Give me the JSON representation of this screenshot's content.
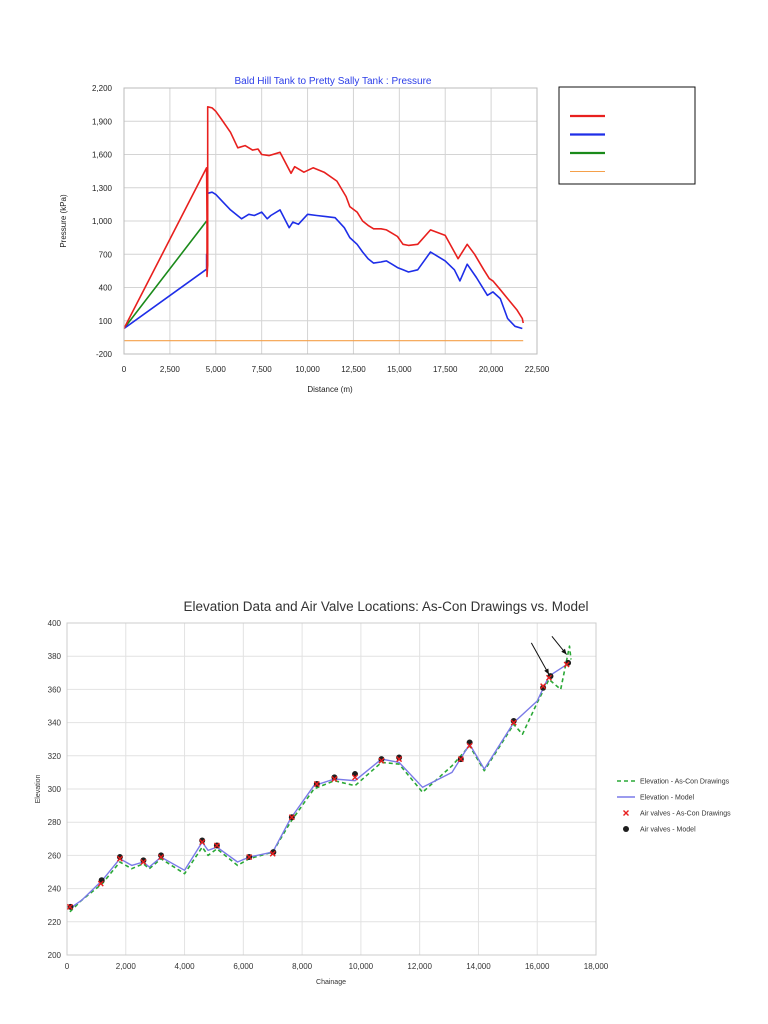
{
  "chart_data": [
    {
      "type": "line",
      "title": "Bald Hill Tank to Pretty Sally Tank : Pressure",
      "xlabel": "Distance (m)",
      "ylabel": "Pressure (kPa)",
      "xlim": [
        0,
        22500
      ],
      "ylim": [
        -200,
        2200
      ],
      "xticks": [
        0,
        2500,
        5000,
        7500,
        10000,
        12500,
        15000,
        17500,
        20000,
        22500
      ],
      "yticks": [
        -200,
        100,
        400,
        700,
        1000,
        1300,
        1600,
        1900,
        2200
      ],
      "xtick_labels": [
        "0",
        "2,500",
        "5,000",
        "7,500",
        "10,000",
        "12,500",
        "15,000",
        "17,500",
        "20,000",
        "22,500"
      ],
      "ytick_labels": [
        "-200",
        "100",
        "400",
        "700",
        "1,000",
        "1,300",
        "1,600",
        "1,900",
        "2,200"
      ],
      "grid": true,
      "legend_position": "right",
      "series": [
        {
          "name": "",
          "color": "#e8201e",
          "x": [
            0,
            4500,
            4520,
            4520,
            4560,
            4560,
            4800,
            5000,
            5300,
            5800,
            6200,
            6600,
            7000,
            7300,
            7500,
            7900,
            8500,
            9100,
            9300,
            9800,
            10300,
            10900,
            11600,
            12100,
            12300,
            12700,
            13000,
            13300,
            13600,
            14000,
            14300,
            14600,
            14900,
            15200,
            15500,
            16000,
            16700,
            17500,
            18200,
            18700,
            19100,
            19600,
            19900,
            20100,
            20500,
            20900,
            21400,
            21700,
            21750
          ],
          "y": [
            30,
            1480,
            1000,
            500,
            600,
            2030,
            2020,
            1990,
            1920,
            1800,
            1660,
            1680,
            1640,
            1650,
            1600,
            1590,
            1620,
            1430,
            1490,
            1440,
            1480,
            1440,
            1360,
            1220,
            1130,
            1080,
            1000,
            960,
            930,
            930,
            920,
            890,
            860,
            790,
            780,
            790,
            920,
            870,
            660,
            790,
            700,
            560,
            480,
            460,
            380,
            300,
            200,
            120,
            80
          ]
        },
        {
          "name": "",
          "color": "#1e2ee8",
          "x": [
            0,
            4450,
            4500,
            4500,
            4520,
            4560,
            4560,
            4800,
            5000,
            5400,
            5800,
            6400,
            6800,
            7100,
            7500,
            7800,
            8000,
            8500,
            9000,
            9200,
            9500,
            10000,
            10500,
            11000,
            11500,
            12000,
            12300,
            12700,
            13000,
            13300,
            13600,
            14000,
            14300,
            14600,
            14900,
            15200,
            15500,
            16000,
            16700,
            17500,
            18000,
            18300,
            18700,
            19200,
            19800,
            20100,
            20500,
            20900,
            21300,
            21700
          ],
          "y": [
            30,
            560,
            560,
            700,
            600,
            620,
            1250,
            1260,
            1240,
            1170,
            1100,
            1020,
            1060,
            1050,
            1080,
            1020,
            1050,
            1100,
            940,
            990,
            970,
            1060,
            1050,
            1040,
            1030,
            940,
            850,
            790,
            720,
            660,
            620,
            630,
            640,
            610,
            580,
            560,
            540,
            560,
            720,
            640,
            560,
            460,
            610,
            490,
            330,
            360,
            300,
            120,
            50,
            30
          ]
        },
        {
          "name": "",
          "color": "#1a8a1a",
          "x": [
            0,
            4500
          ],
          "y": [
            30,
            1000
          ]
        },
        {
          "name": "",
          "color": "#f5a04a",
          "x": [
            0,
            21750
          ],
          "y": [
            -80,
            -80
          ]
        }
      ]
    },
    {
      "type": "line",
      "title": "Elevation Data and Air Valve Locations: As-Con Drawings vs. Model",
      "xlabel": "Chainage",
      "ylabel": "Elevation",
      "xlim": [
        0,
        18000
      ],
      "ylim": [
        200,
        400
      ],
      "xticks": [
        0,
        2000,
        4000,
        6000,
        8000,
        10000,
        12000,
        14000,
        16000,
        18000
      ],
      "yticks": [
        200,
        220,
        240,
        260,
        280,
        300,
        320,
        340,
        360,
        380,
        400
      ],
      "xtick_labels": [
        "0",
        "2,000",
        "4,000",
        "6,000",
        "8,000",
        "10,000",
        "12,000",
        "14,000",
        "16,000",
        "18,000"
      ],
      "ytick_labels": [
        "200",
        "220",
        "240",
        "260",
        "280",
        "300",
        "320",
        "340",
        "360",
        "380",
        "400"
      ],
      "grid": true,
      "legend_position": "right",
      "series": [
        {
          "name": "Elevation - As-Con Drawings",
          "color": "#2aa836",
          "style": "dashed",
          "x": [
            100,
            500,
            1200,
            1800,
            2200,
            2600,
            2800,
            3200,
            4000,
            4600,
            4800,
            5100,
            5800,
            6200,
            7000,
            7600,
            8400,
            9100,
            9800,
            10700,
            11300,
            12100,
            13100,
            13700,
            14200,
            15200,
            15500,
            16000,
            16400,
            16800,
            17100,
            17150
          ],
          "y": [
            226,
            233,
            243,
            256,
            252,
            255,
            252,
            258,
            249,
            265,
            260,
            264,
            254,
            258,
            262,
            280,
            300,
            305,
            302,
            316,
            315,
            298,
            314,
            326,
            311,
            339,
            333,
            352,
            366,
            360,
            386,
            378
          ]
        },
        {
          "name": "Elevation - Model",
          "color": "#7a7ae8",
          "style": "solid",
          "x": [
            100,
            500,
            1200,
            1800,
            2200,
            2600,
            2800,
            3200,
            4000,
            4600,
            4800,
            5100,
            5800,
            6200,
            7000,
            7600,
            8400,
            9100,
            9800,
            10700,
            11300,
            12100,
            13100,
            13700,
            14200,
            15200,
            16000,
            16400,
            17100
          ],
          "y": [
            228,
            233,
            245,
            258,
            254,
            256,
            253,
            259,
            251,
            268,
            263,
            265,
            256,
            259,
            262,
            282,
            302,
            306,
            305,
            318,
            316,
            301,
            310,
            327,
            312,
            340,
            353,
            368,
            376
          ]
        },
        {
          "name": "Air valves - As-Con Drawings",
          "color": "#e81e1e",
          "marker": "x",
          "x": [
            100,
            1150,
            1800,
            2600,
            3200,
            4600,
            5100,
            6200,
            7000,
            7650,
            8500,
            9100,
            9800,
            10700,
            11300,
            13400,
            13700,
            15200,
            16200,
            16400,
            17000
          ],
          "y": [
            229,
            243,
            258,
            256,
            259,
            268,
            266,
            259,
            261,
            283,
            303,
            306,
            307,
            317,
            318,
            318,
            326,
            340,
            362,
            367,
            375
          ]
        },
        {
          "name": "Air valves - Model",
          "color": "#1e1e1e",
          "marker": "circle",
          "x": [
            120,
            1180,
            1800,
            2600,
            3200,
            4600,
            5100,
            6200,
            7020,
            7650,
            8500,
            9100,
            9800,
            10700,
            11300,
            13400,
            13700,
            15200,
            16200,
            16450,
            17050
          ],
          "y": [
            229,
            245,
            259,
            257,
            260,
            269,
            266,
            259,
            262,
            283,
            303,
            307,
            309,
            318,
            319,
            318,
            328,
            341,
            361,
            368,
            376
          ]
        }
      ],
      "annotations": [
        {
          "type": "arrow",
          "from": [
            15800,
            388
          ],
          "to": [
            16400,
            369
          ]
        },
        {
          "type": "arrow",
          "from": [
            16500,
            392
          ],
          "to": [
            17000,
            381
          ]
        }
      ]
    }
  ]
}
